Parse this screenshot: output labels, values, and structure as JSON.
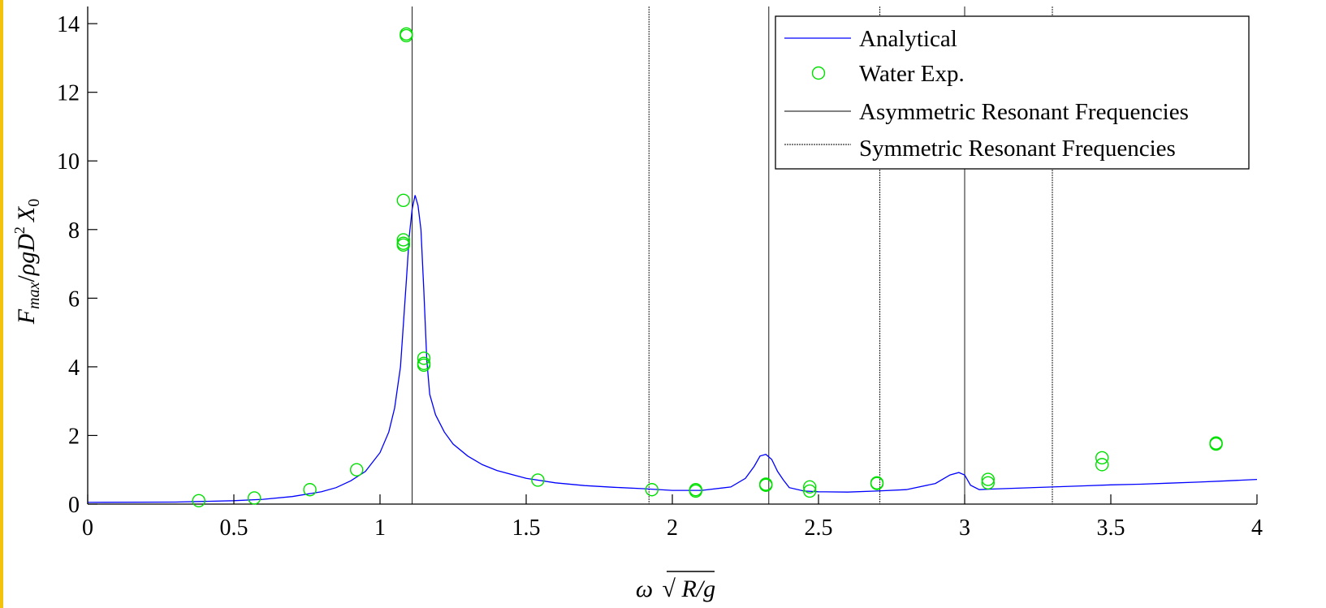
{
  "chart_data": {
    "type": "line",
    "xlabel": "ω√R/g",
    "ylabel": "Fmax/ρgD² X0",
    "xlim": [
      0,
      4
    ],
    "ylim": [
      0,
      14.5
    ],
    "xticks": [
      0,
      0.5,
      1,
      1.5,
      2,
      2.5,
      3,
      3.5,
      4
    ],
    "xtick_labels": [
      "0",
      "0.5",
      "1",
      "1.5",
      "2",
      "2.5",
      "3",
      "3.5",
      "4"
    ],
    "yticks": [
      0,
      2,
      4,
      6,
      8,
      10,
      12,
      14
    ],
    "ytick_labels": [
      "0",
      "2",
      "4",
      "6",
      "8",
      "10",
      "12",
      "14"
    ],
    "legend_position": "top-right",
    "colors": {
      "analytical": "#0000ff",
      "water_exp": "#00e000",
      "resonant": "#000000"
    },
    "series": [
      {
        "name": "Analytical",
        "kind": "line",
        "x": [
          0,
          0.3,
          0.5,
          0.6,
          0.7,
          0.8,
          0.85,
          0.9,
          0.95,
          1.0,
          1.03,
          1.05,
          1.07,
          1.09,
          1.1,
          1.11,
          1.12,
          1.13,
          1.14,
          1.15,
          1.16,
          1.17,
          1.19,
          1.22,
          1.25,
          1.3,
          1.35,
          1.4,
          1.5,
          1.6,
          1.7,
          1.8,
          1.9,
          2.0,
          2.1,
          2.2,
          2.25,
          2.28,
          2.3,
          2.32,
          2.34,
          2.36,
          2.38,
          2.4,
          2.45,
          2.5,
          2.6,
          2.7,
          2.8,
          2.9,
          2.95,
          2.98,
          3.0,
          3.02,
          3.05,
          3.1,
          3.2,
          3.3,
          3.4,
          3.5,
          3.6,
          3.7,
          3.8,
          3.9,
          4.0
        ],
        "y": [
          0.05,
          0.06,
          0.1,
          0.14,
          0.22,
          0.36,
          0.48,
          0.68,
          0.95,
          1.5,
          2.1,
          2.8,
          4.0,
          6.5,
          7.8,
          8.6,
          9.0,
          8.7,
          8.0,
          6.2,
          4.2,
          3.2,
          2.6,
          2.1,
          1.75,
          1.4,
          1.15,
          0.98,
          0.75,
          0.62,
          0.54,
          0.49,
          0.45,
          0.4,
          0.4,
          0.5,
          0.75,
          1.1,
          1.4,
          1.45,
          1.3,
          0.95,
          0.7,
          0.48,
          0.38,
          0.36,
          0.35,
          0.38,
          0.42,
          0.6,
          0.85,
          0.92,
          0.85,
          0.55,
          0.42,
          0.44,
          0.47,
          0.5,
          0.53,
          0.56,
          0.58,
          0.61,
          0.64,
          0.68,
          0.72
        ]
      },
      {
        "name": "Water Exp.",
        "kind": "scatter",
        "x": [
          0.38,
          0.57,
          0.76,
          0.92,
          1.08,
          1.08,
          1.08,
          1.08,
          1.09,
          1.09,
          1.15,
          1.15,
          1.15,
          1.54,
          1.93,
          2.08,
          2.08,
          2.32,
          2.32,
          2.47,
          2.47,
          2.7,
          2.7,
          3.08,
          3.08,
          3.47,
          3.47,
          3.86,
          3.86
        ],
        "y": [
          0.1,
          0.18,
          0.42,
          1.0,
          8.85,
          7.7,
          7.55,
          7.6,
          13.65,
          13.7,
          4.25,
          4.1,
          4.05,
          0.7,
          0.42,
          0.38,
          0.42,
          0.55,
          0.58,
          0.5,
          0.38,
          0.62,
          0.6,
          0.72,
          0.62,
          1.35,
          1.15,
          1.75,
          1.78
        ]
      }
    ],
    "vlines": [
      {
        "name": "Asymmetric Resonant Frequencies",
        "x": [
          1.11,
          2.33,
          3.0
        ]
      },
      {
        "name": "Symmetric Resonant Frequencies",
        "x": [
          1.92,
          2.71,
          3.3
        ]
      }
    ]
  }
}
